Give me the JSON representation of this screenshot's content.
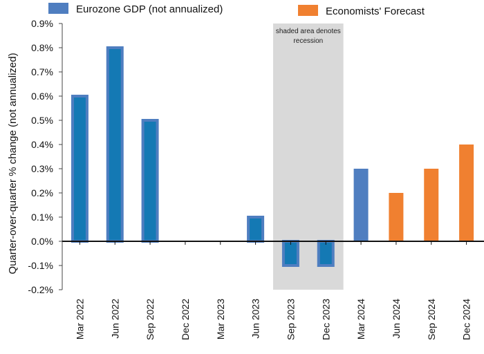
{
  "chart_data": {
    "type": "bar",
    "categories": [
      "Mar 2022",
      "Jun 2022",
      "Sep 2022",
      "Dec 2022",
      "Mar 2023",
      "Jun 2023",
      "Sep 2023",
      "Dec 2023",
      "Mar 2024",
      "Jun 2024",
      "Sep 2024",
      "Dec 2024"
    ],
    "series": [
      {
        "name": "Eurozone GDP (not annualized)",
        "color": "#4F7EC0",
        "values": [
          0.6,
          0.8,
          0.5,
          0.0,
          0.0,
          0.1,
          -0.1,
          -0.1,
          0.3,
          null,
          null,
          null
        ]
      },
      {
        "name": "Economists' Forecast",
        "color": "#F08030",
        "values": [
          null,
          null,
          null,
          null,
          null,
          null,
          null,
          null,
          null,
          0.2,
          0.3,
          0.4
        ]
      }
    ],
    "ylabel": "Quarter-over-quarter % change (not annualized)",
    "xlabel": "",
    "ylim": [
      -0.2,
      0.9
    ],
    "yticks": [
      "-0.2%",
      "-0.1%",
      "0.0%",
      "0.1%",
      "0.2%",
      "0.3%",
      "0.4%",
      "0.5%",
      "0.6%",
      "0.7%",
      "0.8%",
      "0.9%"
    ],
    "highlight_categories": [
      "Mar 2022",
      "Jun 2022",
      "Sep 2022",
      "Jun 2023",
      "Sep 2023",
      "Dec 2023"
    ],
    "highlight_color": "#1479B4",
    "recession_shading": {
      "from_category": "Sep 2023",
      "to_category": "Dec 2023",
      "label": [
        "shaded area denotes",
        "recession"
      ],
      "color": "#D9D9D9"
    },
    "legend_placement": "top",
    "grid": false
  }
}
